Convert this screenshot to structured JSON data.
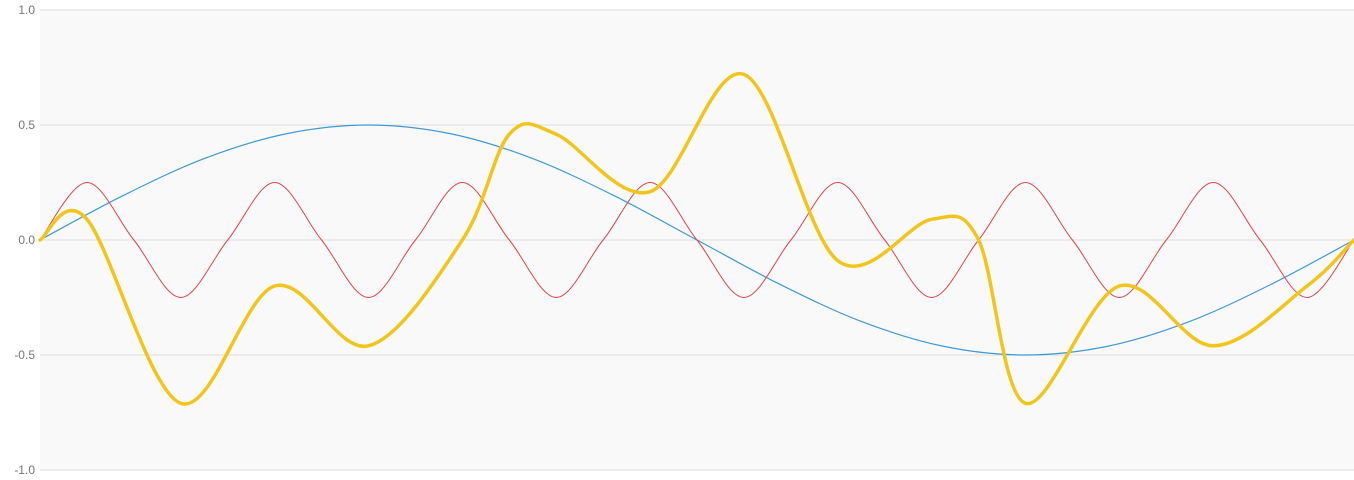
{
  "chart_data": {
    "type": "line",
    "title": "",
    "xlabel": "",
    "ylabel": "",
    "xlim": [
      0,
      6.283185
    ],
    "ylim": [
      -1.0,
      1.0
    ],
    "grid": true,
    "y_ticks": [
      {
        "value": 1.0,
        "label": "1.0"
      },
      {
        "value": 0.5,
        "label": "0.5"
      },
      {
        "value": 0.0,
        "label": "0.0"
      },
      {
        "value": -0.5,
        "label": "-0.5"
      },
      {
        "value": -1.0,
        "label": "-1.0"
      }
    ],
    "series": [
      {
        "color": "#3d9ad6",
        "stroke_width": 1.2,
        "formula": "0.5*sin(x)",
        "x": [
          0,
          0.3927,
          0.7854,
          1.1781,
          1.5708,
          1.9635,
          2.3562,
          2.7489,
          3.1416,
          3.5343,
          3.927,
          4.3197,
          4.7124,
          5.1051,
          5.4978,
          5.8905,
          6.2832
        ],
        "values": [
          0,
          0.191,
          0.354,
          0.462,
          0.5,
          0.462,
          0.354,
          0.191,
          0,
          -0.191,
          -0.354,
          -0.462,
          -0.5,
          -0.462,
          -0.354,
          -0.191,
          0
        ]
      },
      {
        "color": "#e0464a",
        "stroke_width": 1.0,
        "formula": "0.25*sin(7x)",
        "x": [
          0,
          0.2244,
          0.4488,
          0.6732,
          0.8976,
          1.122,
          1.3464,
          1.5708,
          1.7952,
          2.0196,
          2.244,
          2.4684,
          2.6928,
          2.9172,
          3.1416,
          3.366,
          3.5904,
          3.8148,
          4.0392,
          4.2636,
          4.488,
          4.7124,
          4.9368,
          5.1612,
          5.3856,
          5.61,
          5.8344,
          6.0588,
          6.2832
        ],
        "values": [
          0,
          0.25,
          0,
          -0.25,
          0,
          0.25,
          0,
          -0.25,
          0,
          0.25,
          0,
          -0.25,
          0,
          0.25,
          0,
          -0.25,
          0,
          0.25,
          0,
          -0.25,
          0,
          0.25,
          0,
          -0.25,
          0,
          0.25,
          0,
          -0.25,
          0
        ]
      },
      {
        "color": "#f2c51c",
        "stroke_width": 3.5,
        "formula": "0.5*sin(7x)*... composite",
        "x": [
          0,
          0.2244,
          0.6732,
          1.122,
          1.5708,
          2.0196,
          2.244,
          2.4684,
          2.9172,
          3.366,
          3.8148,
          4.2636,
          4.488,
          4.7124,
          5.1612,
          5.61,
          6.0588,
          6.2832
        ],
        "values": [
          0,
          0.09,
          -0.71,
          -0.2,
          -0.46,
          0.0,
          0.46,
          0.46,
          0.21,
          0.72,
          -0.09,
          0.09,
          0.0,
          -0.71,
          -0.2,
          -0.46,
          -0.2,
          0
        ]
      }
    ]
  }
}
